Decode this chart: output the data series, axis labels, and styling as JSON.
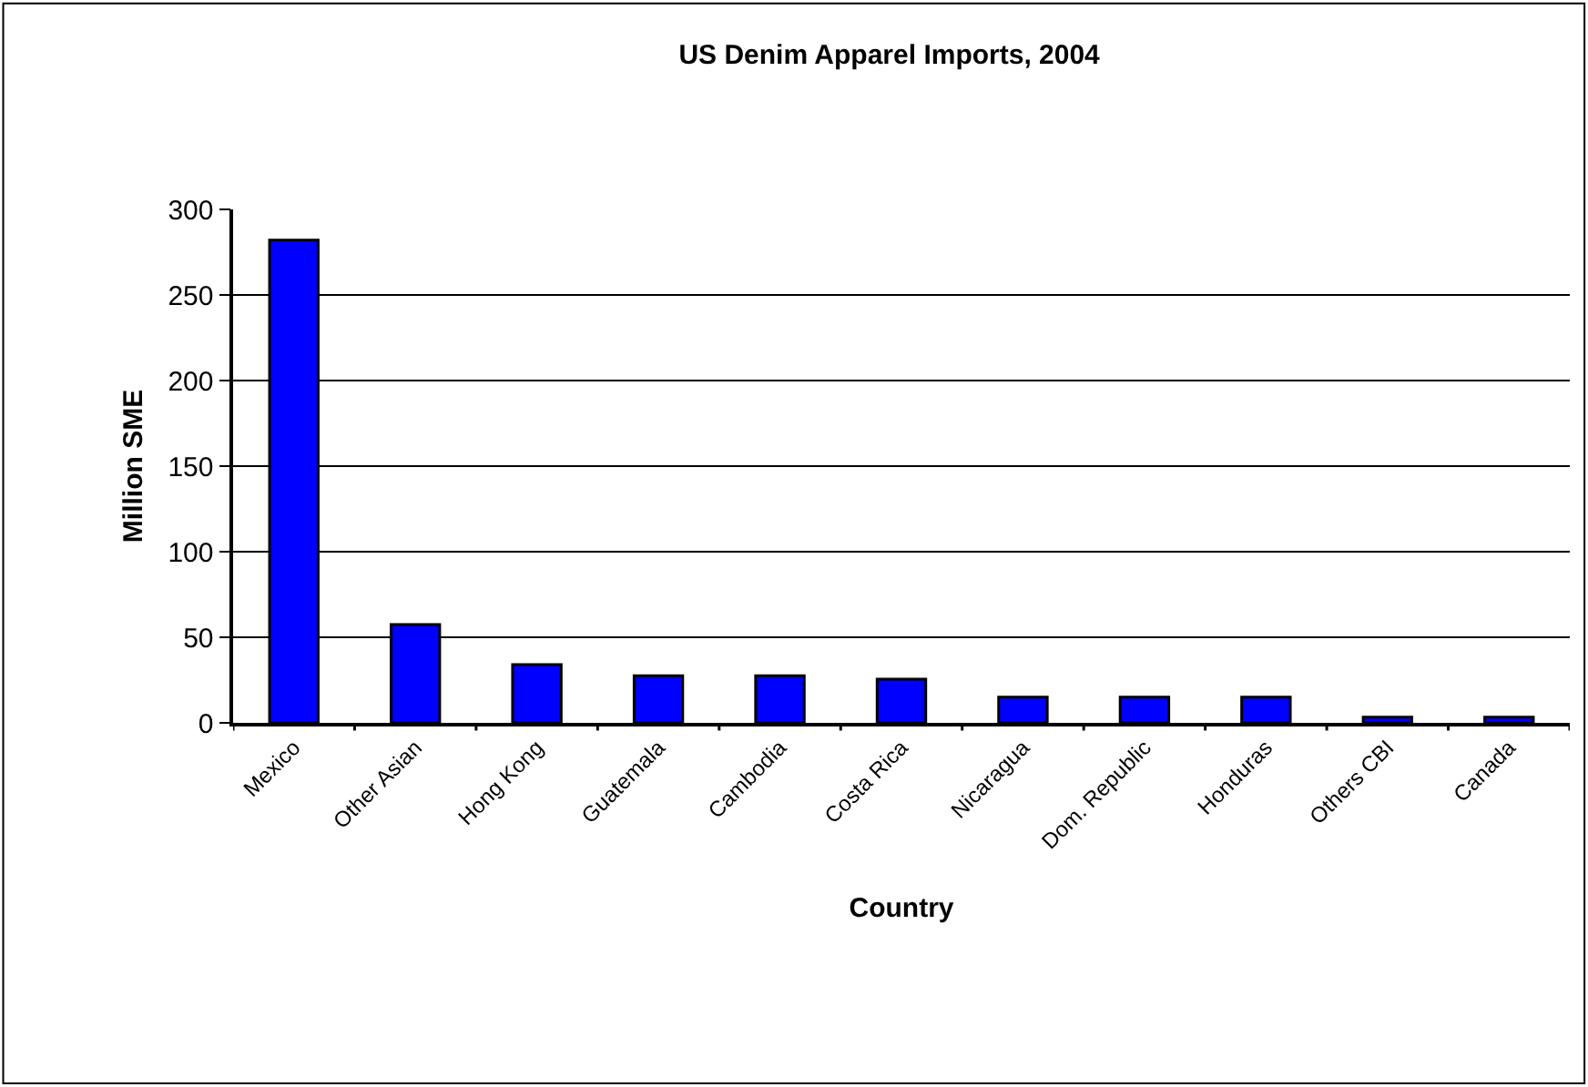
{
  "chart_data": {
    "type": "bar",
    "title": "US Denim Apparel Imports, 2004",
    "xlabel": "Country",
    "ylabel": "Million SME",
    "categories": [
      "Mexico",
      "Other Asian",
      "Hong Kong",
      "Guatemala",
      "Cambodia",
      "Costa Rica",
      "Nicaragua",
      "Dom. Republic",
      "Honduras",
      "Others CBI",
      "Canada"
    ],
    "values": [
      282,
      57.5,
      34,
      27.5,
      27.5,
      25.5,
      15,
      15,
      15,
      3.3,
      3.3
    ],
    "color": "#0000ff",
    "ylim": [
      0,
      300
    ],
    "yticks": [
      0,
      50,
      100,
      150,
      200,
      250,
      300
    ],
    "grid": "y"
  }
}
